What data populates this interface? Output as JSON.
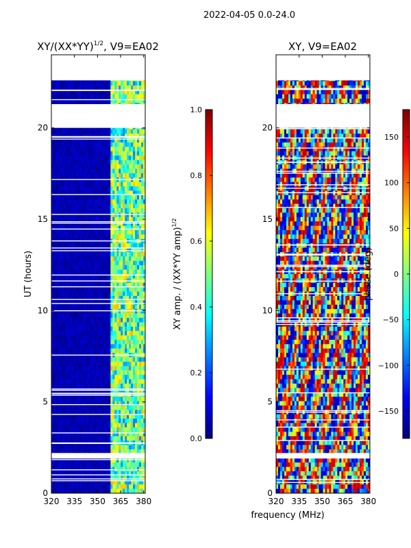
{
  "figure": {
    "suptitle": "2022-04-05 0.0-24.0",
    "shared_xlabel": "frequency (MHz)",
    "colormap": [
      "#00007f",
      "#0000ff",
      "#007fff",
      "#00ffff",
      "#7fff7f",
      "#ffff00",
      "#ff7f00",
      "#ff0000",
      "#7f0000"
    ],
    "missing_color": "#ffffff"
  },
  "chart_data": [
    {
      "type": "heatmap",
      "panel": "left",
      "title": "XY/(XX*YY)",
      "title_exponent": "1/2",
      "title_suffix": ", V9=EA02",
      "xlabel": "",
      "ylabel": "UT (hours)",
      "xlim": [
        320,
        381
      ],
      "ylim": [
        0,
        24
      ],
      "xticks": [
        320,
        335,
        350,
        365,
        380
      ],
      "yticks": [
        0,
        5,
        10,
        15,
        20
      ],
      "colorbar": {
        "label": "XY amp. / (XX*YY amp)",
        "label_exponent": "1/2",
        "vmin": 0.0,
        "vmax": 1.0,
        "ticks": [
          0.0,
          0.2,
          0.4,
          0.6,
          0.8,
          1.0
        ],
        "tick_labels": [
          "0.0",
          "0.2",
          "0.4",
          "0.6",
          "0.8",
          "1.0"
        ]
      },
      "data_gaps_hours": [
        [
          20.0,
          21.3
        ],
        [
          22.6,
          24.0
        ],
        [
          1.9,
          2.2
        ]
      ],
      "low_value_region_MHz": [
        320,
        359
      ],
      "high_value_region_MHz": [
        359,
        380
      ]
    },
    {
      "type": "heatmap",
      "panel": "right",
      "title": "XY, V9=EA02",
      "xlabel": "frequency (MHz)",
      "ylabel": "",
      "xlim": [
        320,
        381
      ],
      "ylim": [
        0,
        24
      ],
      "xticks": [
        320,
        335,
        350,
        365,
        380
      ],
      "yticks": [
        0,
        5,
        10,
        15,
        20
      ],
      "colorbar": {
        "label": "phase (deg)",
        "vmin": -180,
        "vmax": 180,
        "ticks": [
          -150,
          -100,
          -50,
          0,
          50,
          100,
          150
        ],
        "tick_labels": [
          "−150",
          "−100",
          "−50",
          "0",
          "50",
          "100",
          "150"
        ]
      },
      "data_gaps_hours": [
        [
          20.0,
          21.3
        ],
        [
          22.6,
          24.0
        ],
        [
          1.9,
          2.2
        ]
      ]
    }
  ]
}
